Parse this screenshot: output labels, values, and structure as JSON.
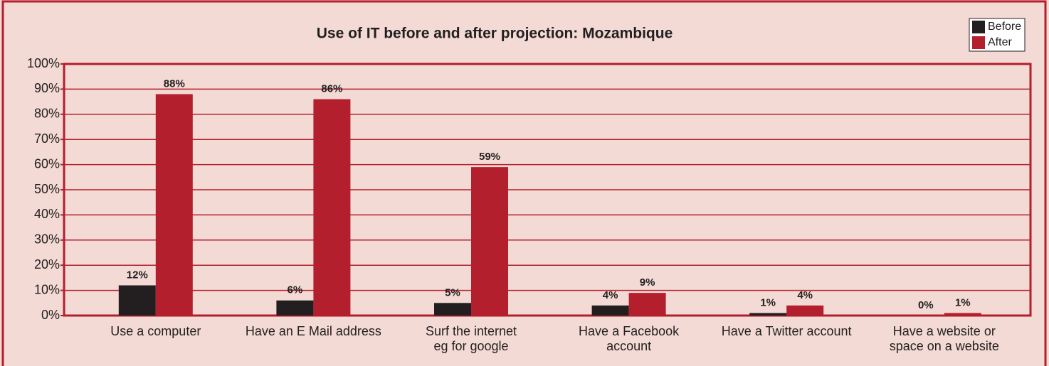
{
  "chart_data": {
    "type": "bar",
    "title": "Use of IT before and after projection: Mozambique",
    "categories": [
      "Use a computer",
      "Have an E Mail address",
      "Surf the internet\neg for google",
      "Have a Facebook\naccount",
      "Have a Twitter account",
      "Have a website or\nspace on a website"
    ],
    "series": [
      {
        "name": "Before",
        "color": "#231f20",
        "values": [
          12,
          6,
          5,
          4,
          1,
          0
        ],
        "value_labels": [
          "12%",
          "6%",
          "5%",
          "4%",
          "1%",
          "0%"
        ]
      },
      {
        "name": "After",
        "color": "#b31f2d",
        "values": [
          88,
          86,
          59,
          9,
          4,
          1
        ],
        "value_labels": [
          "88%",
          "86%",
          "59%",
          "9%",
          "4%",
          "1%"
        ]
      }
    ],
    "ylim": [
      0,
      100
    ],
    "yticks": [
      {
        "value": 0,
        "label": "0%"
      },
      {
        "value": 10,
        "label": "10%"
      },
      {
        "value": 20,
        "label": "20%"
      },
      {
        "value": 30,
        "label": "30%"
      },
      {
        "value": 40,
        "label": "40%"
      },
      {
        "value": 50,
        "label": "50%"
      },
      {
        "value": 60,
        "label": "60%"
      },
      {
        "value": 70,
        "label": "70%"
      },
      {
        "value": 80,
        "label": "80%"
      },
      {
        "value": 90,
        "label": "90%"
      },
      {
        "value": 100,
        "label": "100%"
      }
    ],
    "grid": true,
    "legend": "top-right"
  }
}
